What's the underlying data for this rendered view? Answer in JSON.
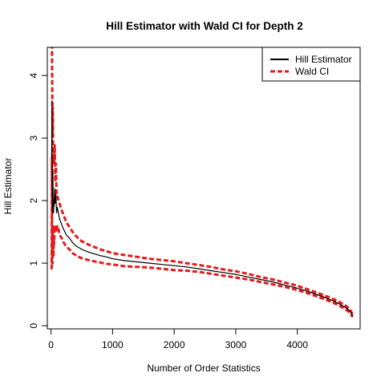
{
  "chart_data": {
    "type": "line",
    "title": "Hill Estimator with Wald CI for Depth 2",
    "xlabel": "Number of Order Statistics",
    "ylabel": "Hill Estimator",
    "xlim": [
      -60,
      5020
    ],
    "ylim": [
      -0.05,
      4.45
    ],
    "x_ticks": [
      0,
      1000,
      2000,
      3000,
      4000
    ],
    "y_ticks": [
      0,
      1,
      2,
      3,
      4
    ],
    "grid": false,
    "legend_position": "top-right",
    "colors": {
      "estimate": "#000000",
      "ci": "#e41a1c"
    },
    "series": [
      {
        "name": "Hill Estimator",
        "style": "solid",
        "x": [
          10,
          15,
          20,
          25,
          30,
          35,
          40,
          45,
          50,
          60,
          70,
          80,
          90,
          100,
          120,
          140,
          160,
          180,
          200,
          250,
          300,
          350,
          400,
          450,
          500,
          600,
          700,
          800,
          900,
          1000,
          1200,
          1400,
          1600,
          1800,
          2000,
          2200,
          2400,
          2600,
          2800,
          3000,
          3200,
          3400,
          3600,
          3800,
          4000,
          4200,
          4400,
          4600,
          4700,
          4800,
          4850,
          4900
        ],
        "y": [
          2.7,
          3.6,
          2.3,
          1.8,
          2.5,
          1.9,
          1.8,
          2.0,
          1.9,
          2.2,
          1.95,
          2.1,
          1.8,
          1.9,
          1.8,
          1.7,
          1.65,
          1.6,
          1.55,
          1.45,
          1.4,
          1.33,
          1.28,
          1.25,
          1.22,
          1.18,
          1.15,
          1.12,
          1.1,
          1.07,
          1.04,
          1.02,
          1.0,
          0.98,
          0.96,
          0.94,
          0.91,
          0.88,
          0.85,
          0.82,
          0.78,
          0.74,
          0.7,
          0.65,
          0.6,
          0.54,
          0.47,
          0.39,
          0.34,
          0.28,
          0.24,
          0.16
        ]
      },
      {
        "name": "Wald CI",
        "style": "dashed",
        "x": [
          10,
          15,
          20,
          25,
          30,
          35,
          40,
          45,
          50,
          60,
          70,
          80,
          90,
          100,
          120,
          140,
          160,
          180,
          200,
          250,
          300,
          350,
          400,
          450,
          500,
          600,
          700,
          800,
          900,
          1000,
          1200,
          1400,
          1600,
          1800,
          2000,
          2200,
          2400,
          2600,
          2800,
          3000,
          3200,
          3400,
          3600,
          3800,
          4000,
          4200,
          4400,
          4600,
          4700,
          4800,
          4850,
          4900
        ],
        "y": [
          4.5,
          4.5,
          3.9,
          3.0,
          3.5,
          2.6,
          2.6,
          2.7,
          2.6,
          2.9,
          2.3,
          2.6,
          2.1,
          2.1,
          2.0,
          1.95,
          1.88,
          1.83,
          1.78,
          1.65,
          1.58,
          1.5,
          1.44,
          1.39,
          1.35,
          1.3,
          1.26,
          1.22,
          1.19,
          1.16,
          1.13,
          1.1,
          1.07,
          1.05,
          1.03,
          1.0,
          0.97,
          0.94,
          0.9,
          0.87,
          0.83,
          0.78,
          0.74,
          0.69,
          0.64,
          0.57,
          0.5,
          0.42,
          0.37,
          0.31,
          0.27,
          0.18
        ],
        "y_lower": [
          0.9,
          2.7,
          1.0,
          1.0,
          1.6,
          1.3,
          1.1,
          1.4,
          1.3,
          1.6,
          1.55,
          1.6,
          1.5,
          1.6,
          1.55,
          1.45,
          1.42,
          1.39,
          1.34,
          1.26,
          1.22,
          1.16,
          1.13,
          1.1,
          1.08,
          1.05,
          1.03,
          1.01,
          0.99,
          0.98,
          0.95,
          0.94,
          0.93,
          0.91,
          0.89,
          0.88,
          0.86,
          0.83,
          0.8,
          0.77,
          0.74,
          0.7,
          0.66,
          0.62,
          0.57,
          0.51,
          0.44,
          0.36,
          0.31,
          0.25,
          0.21,
          0.14
        ]
      }
    ]
  }
}
